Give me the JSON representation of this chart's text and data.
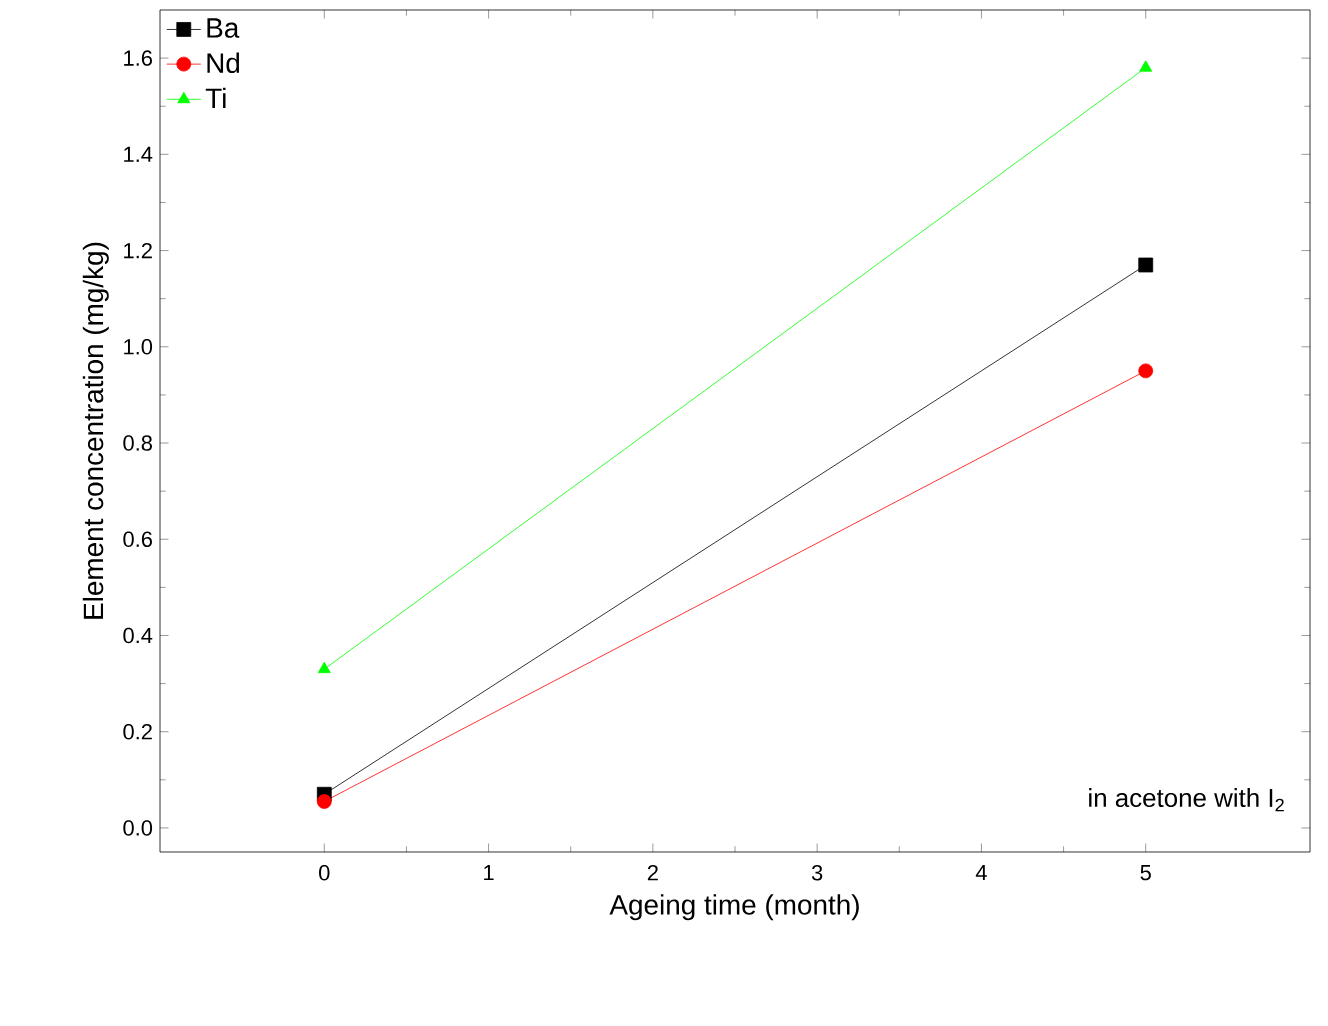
{
  "chart_data": {
    "type": "line",
    "xlabel": "Ageing time (month)",
    "ylabel": "Element concentration (mg/kg)",
    "x": [
      0,
      5
    ],
    "series": [
      {
        "name": "Ba",
        "color": "#000000",
        "marker": "square",
        "values": [
          0.07,
          1.17
        ]
      },
      {
        "name": "Nd",
        "color": "#ff0000",
        "marker": "circle",
        "values": [
          0.055,
          0.95
        ]
      },
      {
        "name": "Ti",
        "color": "#00ff00",
        "marker": "triangle",
        "values": [
          0.33,
          1.58
        ]
      }
    ],
    "xlim": [
      -1,
      6
    ],
    "xticks": [
      0,
      1,
      2,
      3,
      4,
      5
    ],
    "ylim": [
      -0.05,
      1.7
    ],
    "yticks": [
      {
        "value": 0,
        "label": "0.0"
      },
      {
        "value": 0.2,
        "label": "0.2"
      },
      {
        "value": 0.4,
        "label": "0.4"
      },
      {
        "value": 0.6,
        "label": "0.6"
      },
      {
        "value": 0.8,
        "label": "0.8"
      },
      {
        "value": 1.0,
        "label": "1.0"
      },
      {
        "value": 1.2,
        "label": "1.2"
      },
      {
        "value": 1.4,
        "label": "1.4"
      },
      {
        "value": 1.6,
        "label": "1.6"
      }
    ],
    "legend": "top left",
    "annotations": [
      "in acetone with I$_{2}$"
    ]
  }
}
